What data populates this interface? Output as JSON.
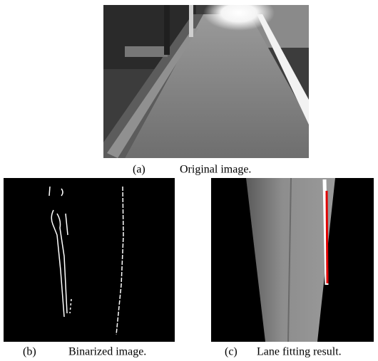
{
  "figures": [
    {
      "label": "(a)",
      "caption": "Original image."
    },
    {
      "label": "(b)",
      "caption": "Binarized image."
    },
    {
      "label": "(c)",
      "caption": "Lane fitting result."
    }
  ]
}
